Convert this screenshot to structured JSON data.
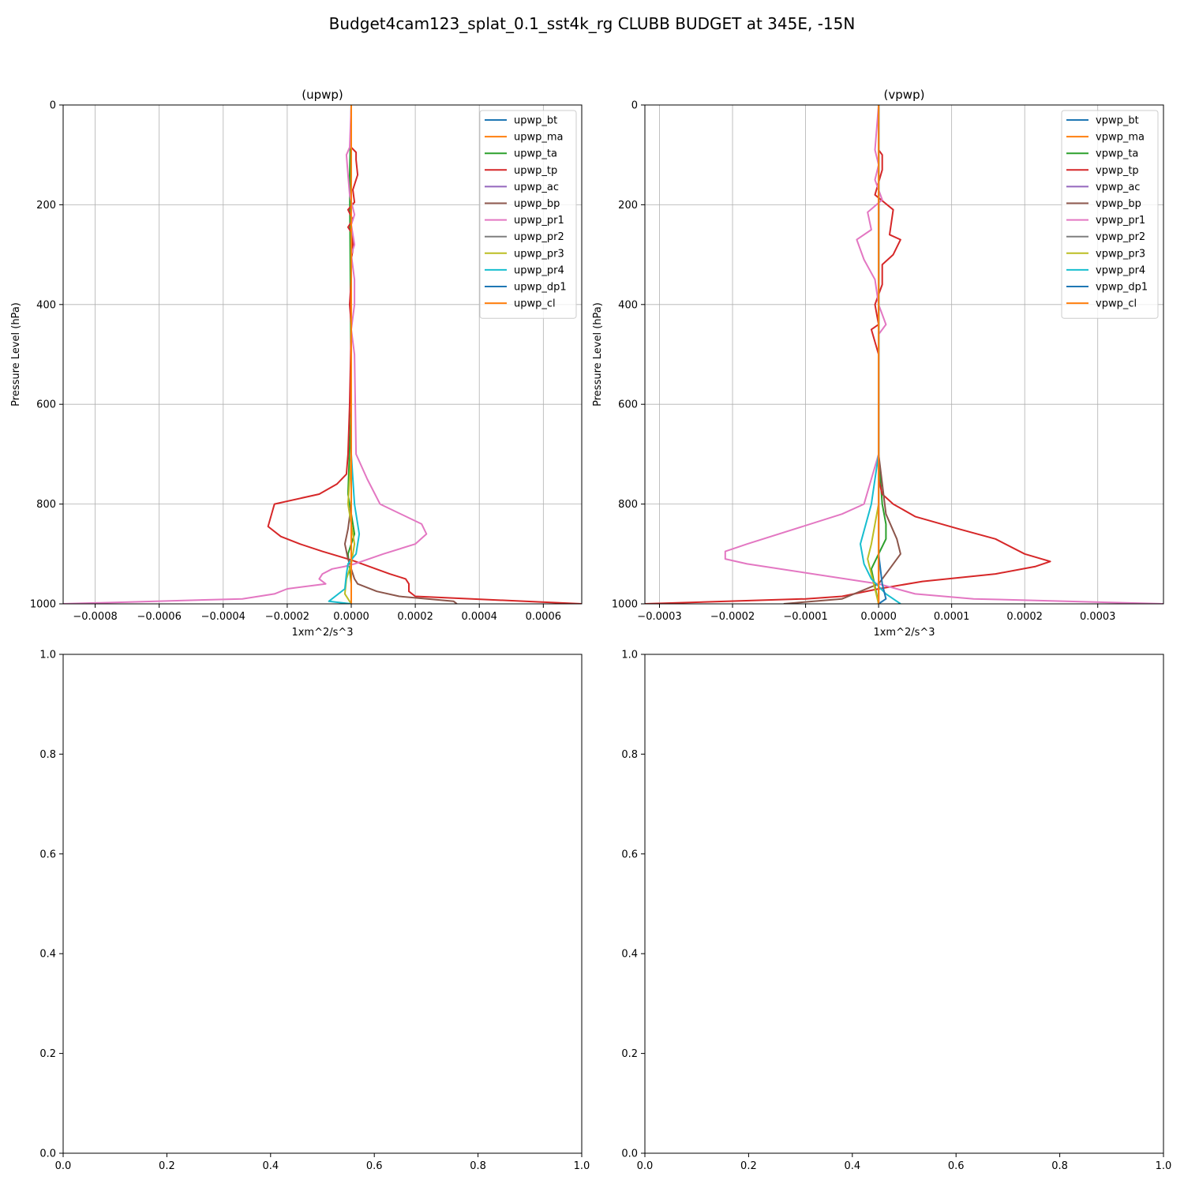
{
  "figure": {
    "title": "Budget4cam123_splat_0.1_sst4k_rg CLUBB BUDGET at 345E, -15N"
  },
  "chart_data": [
    {
      "type": "line",
      "title": "(upwp)",
      "xlabel": "1xm^2/s^3",
      "ylabel": "Pressure Level (hPa)",
      "xlim": [
        -0.0009,
        0.00072
      ],
      "ylim": [
        1000,
        0
      ],
      "y_inverted": true,
      "grid": true,
      "legend": "upper right",
      "x_ticks": [
        -0.0008,
        -0.0006,
        -0.0004,
        -0.0002,
        0.0,
        0.0002,
        0.0004,
        0.0006
      ],
      "x_tick_labels": [
        "−0.0008",
        "−0.0006",
        "−0.0004",
        "−0.0002",
        "0.0000",
        "0.0002",
        "0.0004",
        "0.0006"
      ],
      "y_ticks": [
        0,
        200,
        400,
        600,
        800,
        1000
      ],
      "y_tick_labels": [
        "0",
        "200",
        "400",
        "600",
        "800",
        "1000"
      ],
      "series": [
        {
          "name": "upwp_bt",
          "color": "#1f77b4",
          "x": [
            0,
            0,
            0,
            0,
            0
          ],
          "y": [
            0,
            300,
            600,
            900,
            1000
          ]
        },
        {
          "name": "upwp_ma",
          "color": "#ff7f0e",
          "x": [
            0,
            0,
            0,
            0,
            0
          ],
          "y": [
            0,
            300,
            600,
            900,
            1000
          ]
        },
        {
          "name": "upwp_ta",
          "color": "#2ca02c",
          "x": [
            0,
            -5e-06,
            0,
            -1e-05,
            0,
            1e-05,
            -1e-05,
            0,
            0
          ],
          "y": [
            0,
            140,
            600,
            780,
            820,
            860,
            900,
            960,
            1000
          ]
        },
        {
          "name": "upwp_tp",
          "color": "#d62728",
          "x": [
            0,
            0,
            1.5e-05,
            1.5e-05,
            2e-05,
            5e-06,
            1e-05,
            -1e-05,
            5e-06,
            -1e-05,
            5e-06,
            5e-06,
            0,
            0,
            -5e-06,
            0,
            0,
            -5e-06,
            -1e-05,
            -1.5e-05,
            -4.5e-05,
            -0.0001,
            -0.00024,
            -0.00026,
            -0.00022,
            -0.00016,
            -9e-05,
            0,
            0.00012,
            0.00017,
            0.00018,
            0.00018,
            0.0002,
            0.00072
          ],
          "y": [
            0,
            85,
            95,
            110,
            140,
            170,
            195,
            210,
            230,
            245,
            260,
            290,
            310,
            350,
            400,
            440,
            450,
            600,
            700,
            740,
            760,
            780,
            800,
            845,
            865,
            880,
            895,
            912,
            940,
            950,
            960,
            975,
            985,
            1000
          ]
        },
        {
          "name": "upwp_ac",
          "color": "#9467bd",
          "x": [
            0,
            0,
            0,
            0
          ],
          "y": [
            0,
            500,
            900,
            1000
          ]
        },
        {
          "name": "upwp_bp",
          "color": "#8c564b",
          "x": [
            0,
            0,
            0,
            -1e-05,
            -2e-05,
            -1e-05,
            0,
            1e-05,
            2e-05,
            8e-05,
            0.00015,
            0.00032,
            0.00033
          ],
          "y": [
            0,
            500,
            800,
            850,
            880,
            910,
            930,
            950,
            960,
            975,
            985,
            995,
            1000
          ]
        },
        {
          "name": "upwp_pr1",
          "color": "#e377c2",
          "x": [
            0,
            -5e-06,
            -1.5e-05,
            -1e-05,
            -5e-06,
            1e-05,
            0,
            1e-05,
            0,
            1e-05,
            1e-05,
            0,
            1e-05,
            1.5e-05,
            5e-05,
            9e-05,
            0.00022,
            0.000235,
            0.0002,
            0.0001,
            1e-05,
            -2e-05,
            -6e-05,
            -9e-05,
            -0.0001,
            -8e-05,
            -0.0002,
            -0.00024,
            -0.00034,
            -0.0009
          ],
          "y": [
            0,
            85,
            100,
            140,
            180,
            220,
            240,
            280,
            300,
            350,
            400,
            450,
            500,
            700,
            750,
            800,
            840,
            860,
            880,
            900,
            920,
            925,
            930,
            940,
            950,
            960,
            970,
            980,
            990,
            1000
          ]
        },
        {
          "name": "upwp_pr2",
          "color": "#7f7f7f",
          "x": [
            0,
            0,
            0,
            0
          ],
          "y": [
            0,
            500,
            900,
            1000
          ]
        },
        {
          "name": "upwp_pr3",
          "color": "#bcbd22",
          "x": [
            0,
            0,
            -1e-05,
            1e-05,
            0,
            -1.5e-05,
            -2e-05,
            0
          ],
          "y": [
            0,
            700,
            800,
            880,
            920,
            950,
            980,
            1000
          ]
        },
        {
          "name": "upwp_pr4",
          "color": "#17becf",
          "x": [
            0,
            0,
            1e-05,
            2.5e-05,
            2e-05,
            1.5e-05,
            -1e-05,
            -1.5e-05,
            -2e-05,
            -7e-05,
            0
          ],
          "y": [
            0,
            700,
            800,
            860,
            880,
            900,
            920,
            940,
            970,
            995,
            1000
          ]
        },
        {
          "name": "upwp_dp1",
          "color": "#1f77b4",
          "x": [
            0,
            0,
            0
          ],
          "y": [
            0,
            900,
            1000
          ]
        },
        {
          "name": "upwp_cl",
          "color": "#ff7f0e",
          "x": [
            0,
            0,
            0
          ],
          "y": [
            0,
            900,
            1000
          ]
        }
      ]
    },
    {
      "type": "line",
      "title": "(vpwp)",
      "xlabel": "1xm^2/s^3",
      "ylabel": "Pressure Level (hPa)",
      "xlim": [
        -0.00032,
        0.00039
      ],
      "ylim": [
        1000,
        0
      ],
      "y_inverted": true,
      "grid": true,
      "legend": "upper right",
      "x_ticks": [
        -0.0003,
        -0.0002,
        -0.0001,
        0.0,
        0.0001,
        0.0002,
        0.0003
      ],
      "x_tick_labels": [
        "−0.0003",
        "−0.0002",
        "−0.0001",
        "0.0000",
        "0.0001",
        "0.0002",
        "0.0003"
      ],
      "y_ticks": [
        0,
        200,
        400,
        600,
        800,
        1000
      ],
      "y_tick_labels": [
        "0",
        "200",
        "400",
        "600",
        "800",
        "1000"
      ],
      "series": [
        {
          "name": "vpwp_bt",
          "color": "#1f77b4",
          "x": [
            0,
            0,
            0,
            0
          ],
          "y": [
            0,
            500,
            900,
            1000
          ]
        },
        {
          "name": "vpwp_ma",
          "color": "#ff7f0e",
          "x": [
            0,
            0,
            0,
            0
          ],
          "y": [
            0,
            500,
            900,
            1000
          ]
        },
        {
          "name": "vpwp_ta",
          "color": "#2ca02c",
          "x": [
            0,
            0,
            5e-06,
            1e-05,
            1e-05,
            0,
            -1e-05,
            0
          ],
          "y": [
            0,
            700,
            800,
            840,
            870,
            900,
            930,
            1000
          ]
        },
        {
          "name": "vpwp_tp",
          "color": "#d62728",
          "x": [
            0,
            0,
            5e-06,
            5e-06,
            -5e-06,
            2e-05,
            1.5e-05,
            3e-05,
            2e-05,
            5e-06,
            5e-06,
            -5e-06,
            0,
            -1e-05,
            0,
            0,
            0,
            5e-06,
            2e-05,
            5e-05,
            0.00011,
            0.00016,
            0.0002,
            0.000235,
            0.000215,
            0.00016,
            6e-05,
            0,
            -5e-05,
            -0.0001,
            -0.00032
          ],
          "y": [
            0,
            90,
            100,
            130,
            180,
            210,
            260,
            270,
            300,
            320,
            360,
            400,
            440,
            450,
            500,
            700,
            750,
            780,
            800,
            825,
            850,
            870,
            900,
            915,
            925,
            940,
            955,
            970,
            985,
            990,
            1000
          ]
        },
        {
          "name": "vpwp_ac",
          "color": "#9467bd",
          "x": [
            0,
            0,
            0,
            0
          ],
          "y": [
            0,
            500,
            900,
            1000
          ]
        },
        {
          "name": "vpwp_bp",
          "color": "#8c564b",
          "x": [
            0,
            0,
            1e-05,
            2.5e-05,
            3e-05,
            1.5e-05,
            0,
            -5e-05,
            -0.00013
          ],
          "y": [
            0,
            700,
            820,
            870,
            900,
            930,
            960,
            990,
            1000
          ]
        },
        {
          "name": "vpwp_pr1",
          "color": "#e377c2",
          "x": [
            0,
            -5e-06,
            0,
            -5e-06,
            5e-06,
            -1.5e-05,
            -1e-05,
            -3e-05,
            -2e-05,
            -5e-06,
            0,
            1e-05,
            0,
            0,
            -2e-05,
            -5e-05,
            -0.00018,
            -0.00021,
            -0.00021,
            -0.00018,
            0,
            5e-05,
            0.00013,
            0.00039
          ],
          "y": [
            0,
            90,
            120,
            150,
            190,
            215,
            250,
            270,
            310,
            350,
            400,
            440,
            460,
            700,
            800,
            820,
            880,
            895,
            910,
            920,
            960,
            980,
            990,
            1000
          ]
        },
        {
          "name": "vpwp_pr2",
          "color": "#7f7f7f",
          "x": [
            0,
            0,
            0
          ],
          "y": [
            0,
            900,
            1000
          ]
        },
        {
          "name": "vpwp_pr3",
          "color": "#bcbd22",
          "x": [
            0,
            0,
            -1e-05,
            -1.5e-05,
            -1e-05,
            0
          ],
          "y": [
            0,
            800,
            880,
            910,
            940,
            1000
          ]
        },
        {
          "name": "vpwp_pr4",
          "color": "#17becf",
          "x": [
            0,
            0,
            -1e-05,
            -2.5e-05,
            -2e-05,
            -1e-05,
            1e-05,
            3e-05
          ],
          "y": [
            0,
            700,
            800,
            880,
            920,
            950,
            980,
            1000
          ]
        },
        {
          "name": "vpwp_dp1",
          "color": "#1f77b4",
          "x": [
            0,
            0,
            5e-06,
            1e-05,
            0
          ],
          "y": [
            0,
            900,
            960,
            990,
            1000
          ]
        },
        {
          "name": "vpwp_cl",
          "color": "#ff7f0e",
          "x": [
            0,
            0,
            0
          ],
          "y": [
            0,
            900,
            1000
          ]
        }
      ]
    },
    {
      "type": "line",
      "title": "",
      "xlim": [
        0,
        1
      ],
      "ylim": [
        0,
        1
      ],
      "y_inverted": false,
      "grid": false,
      "x_ticks": [
        0,
        0.2,
        0.4,
        0.6,
        0.8,
        1.0
      ],
      "x_tick_labels": [
        "0.0",
        "0.2",
        "0.4",
        "0.6",
        "0.8",
        "1.0"
      ],
      "y_ticks": [
        0,
        0.2,
        0.4,
        0.6,
        0.8,
        1.0
      ],
      "y_tick_labels": [
        "0.0",
        "0.2",
        "0.4",
        "0.6",
        "0.8",
        "1.0"
      ],
      "series": []
    },
    {
      "type": "line",
      "title": "",
      "xlim": [
        0,
        1
      ],
      "ylim": [
        0,
        1
      ],
      "y_inverted": false,
      "grid": false,
      "x_ticks": [
        0,
        0.2,
        0.4,
        0.6,
        0.8,
        1.0
      ],
      "x_tick_labels": [
        "0.0",
        "0.2",
        "0.4",
        "0.6",
        "0.8",
        "1.0"
      ],
      "y_ticks": [
        0,
        0.2,
        0.4,
        0.6,
        0.8,
        1.0
      ],
      "y_tick_labels": [
        "0.0",
        "0.2",
        "0.4",
        "0.6",
        "0.8",
        "1.0"
      ],
      "series": []
    }
  ]
}
